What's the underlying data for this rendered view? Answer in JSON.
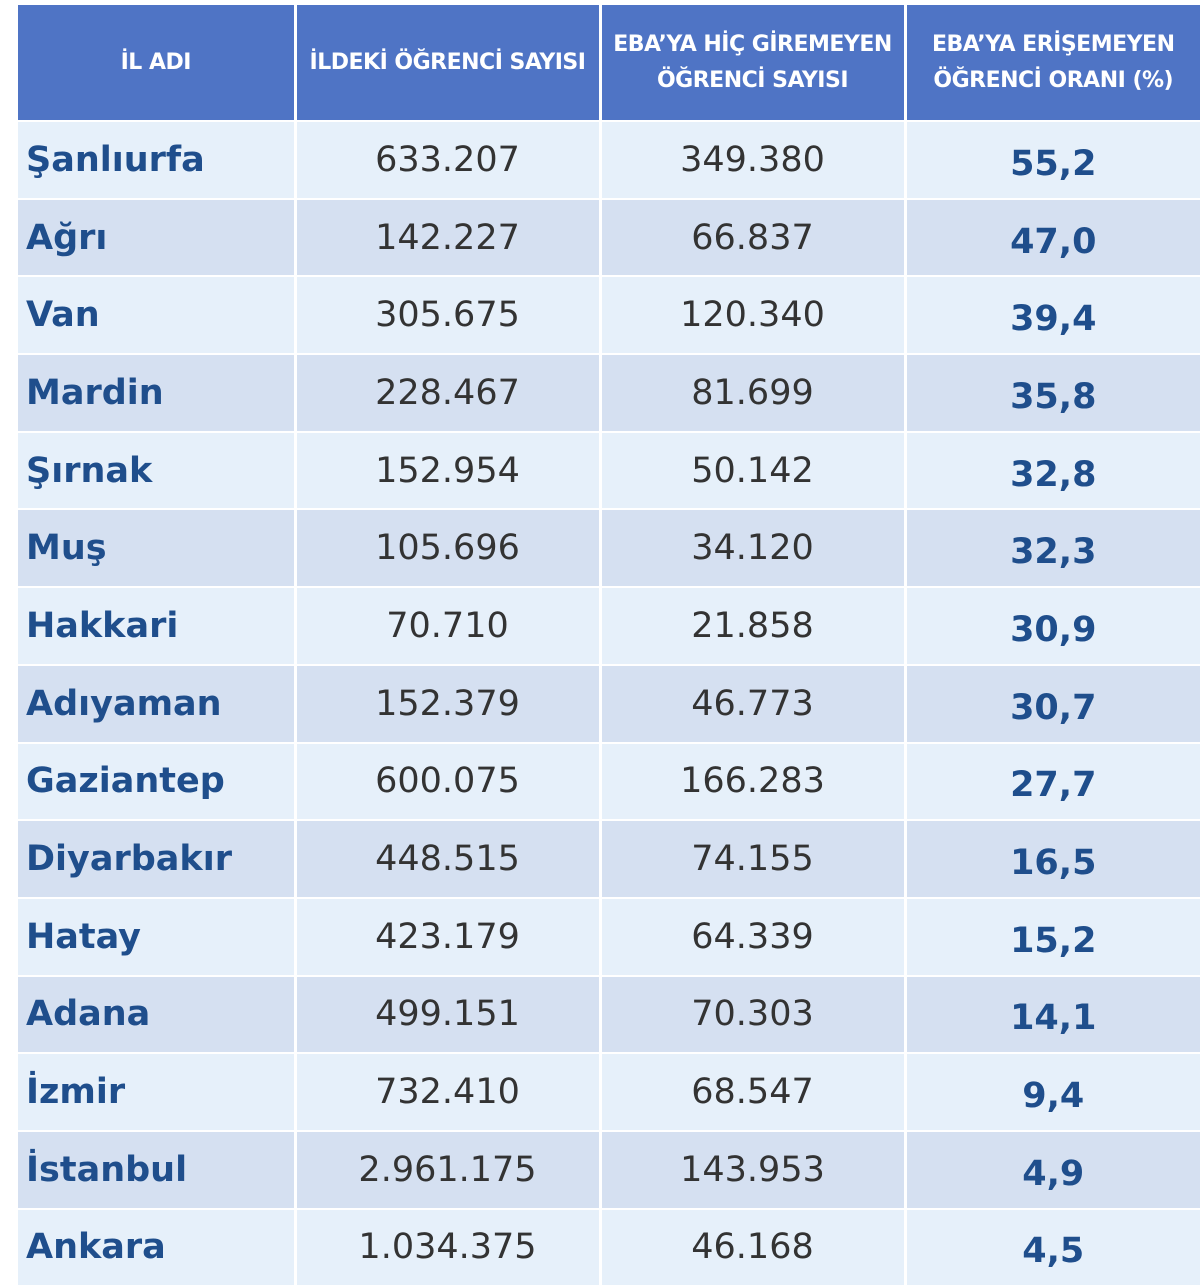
{
  "table": {
    "headers": [
      "İL ADI",
      "İLDEKİ ÖĞRENCİ SAYISI",
      "EBA’YA HİÇ GİREMEYEN ÖĞRENCİ SAYISI",
      "EBA’YA ERİŞEMEYEN ÖĞRENCİ ORANI (%)"
    ],
    "rows": [
      [
        "Şanlıurfa",
        "633.207",
        "349.380",
        "55,2"
      ],
      [
        "Ağrı",
        "142.227",
        "66.837",
        "47,0"
      ],
      [
        "Van",
        "305.675",
        "120.340",
        "39,4"
      ],
      [
        "Mardin",
        "228.467",
        "81.699",
        "35,8"
      ],
      [
        "Şırnak",
        "152.954",
        "50.142",
        "32,8"
      ],
      [
        "Muş",
        "105.696",
        "34.120",
        "32,3"
      ],
      [
        "Hakkari",
        "70.710",
        "21.858",
        "30,9"
      ],
      [
        "Adıyaman",
        "152.379",
        "46.773",
        "30,7"
      ],
      [
        "Gaziantep",
        "600.075",
        "166.283",
        "27,7"
      ],
      [
        "Diyarbakır",
        "448.515",
        "74.155",
        "16,5"
      ],
      [
        "Hatay",
        "423.179",
        "64.339",
        "15,2"
      ],
      [
        "Adana",
        "499.151",
        "70.303",
        "14,1"
      ],
      [
        "İzmir",
        "732.410",
        "68.547",
        "9,4"
      ],
      [
        "İstanbul",
        "2.961.175",
        "143.953",
        "4,9"
      ],
      [
        "Ankara",
        "1.034.375",
        "46.168",
        "4,5"
      ]
    ]
  }
}
